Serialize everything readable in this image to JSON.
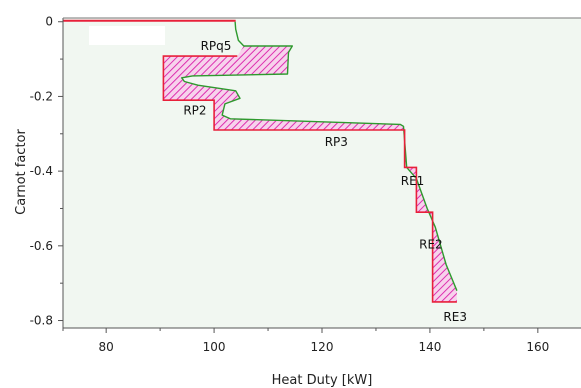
{
  "chart_data": {
    "type": "area",
    "title": "",
    "xlabel": "Heat Duty [kW]",
    "ylabel": "Carnot factor",
    "xlim": [
      72,
      168
    ],
    "ylim": [
      -0.82,
      0.01
    ],
    "x_ticks": [
      80,
      100,
      120,
      140,
      160
    ],
    "y_ticks": [
      0,
      -0.2,
      -0.4,
      -0.6,
      -0.8
    ],
    "grid": false,
    "legend": "none",
    "colors": {
      "plot_background": "#f1f7f1",
      "red_curve": "#e8203a",
      "green_curve": "#2e9a2e",
      "hatch": "#dd2fb0"
    },
    "series": [
      {
        "color": "red",
        "points": [
          [
            90.6,
            -0.092
          ],
          [
            104.3,
            -0.092
          ],
          [
            90.6,
            -0.092
          ],
          [
            90.6,
            -0.21
          ],
          [
            100,
            -0.21
          ],
          [
            100,
            -0.29
          ],
          [
            135.3,
            -0.29
          ],
          [
            135.3,
            -0.39
          ],
          [
            137.5,
            -0.39
          ],
          [
            137.5,
            -0.51
          ],
          [
            140.5,
            -0.51
          ],
          [
            140.5,
            -0.75
          ],
          [
            145,
            -0.75
          ]
        ]
      },
      {
        "color": "green",
        "points": [
          [
            103.9,
            0.0
          ],
          [
            104.0,
            -0.02
          ],
          [
            104.5,
            -0.05
          ],
          [
            105.5,
            -0.065
          ],
          [
            114.5,
            -0.065
          ],
          [
            113.8,
            -0.082
          ],
          [
            113.7,
            -0.11
          ],
          [
            113.6,
            -0.14
          ],
          [
            96,
            -0.145
          ],
          [
            94,
            -0.15
          ],
          [
            94.5,
            -0.16
          ],
          [
            97,
            -0.17
          ],
          [
            104,
            -0.185
          ],
          [
            104.8,
            -0.205
          ],
          [
            102,
            -0.22
          ],
          [
            101.5,
            -0.25
          ],
          [
            103,
            -0.26
          ],
          [
            134.5,
            -0.275
          ],
          [
            135.1,
            -0.28
          ],
          [
            135.7,
            -0.39
          ],
          [
            137.5,
            -0.42
          ],
          [
            139.5,
            -0.5
          ],
          [
            141,
            -0.55
          ],
          [
            143,
            -0.65
          ],
          [
            145,
            -0.72
          ]
        ]
      }
    ],
    "annotations": [
      {
        "text": "RPq5",
        "x": 97.5,
        "y": -0.065
      },
      {
        "text": "RP2",
        "x": 94.3,
        "y": -0.238
      },
      {
        "text": "RP3",
        "x": 120.5,
        "y": -0.322
      },
      {
        "text": "RE1",
        "x": 134.6,
        "y": -0.426
      },
      {
        "text": "RE2",
        "x": 138.0,
        "y": -0.596
      },
      {
        "text": "RE3",
        "x": 142.5,
        "y": -0.79
      }
    ]
  }
}
